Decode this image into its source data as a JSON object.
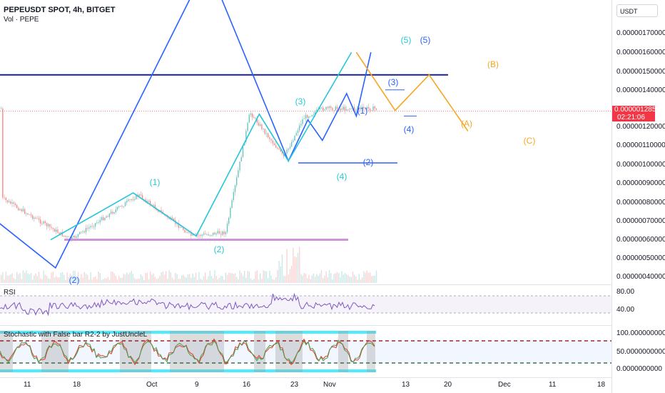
{
  "header": {
    "symbol_line": "PEPEUSDT SPOT, 4h, BITGET",
    "volume_label": "Vol · PEPE"
  },
  "currency_selector": "USDT",
  "price_axis": [
    {
      "label": "0.00000170000"
    },
    {
      "label": "0.00000160000"
    },
    {
      "label": "0.00000150000"
    },
    {
      "label": "0.00000140000"
    },
    {
      "label": "0.00000120000"
    },
    {
      "label": "0.00000110000"
    },
    {
      "label": "0.00000100000"
    },
    {
      "label": "0.00000090000"
    },
    {
      "label": "0.00000080000"
    },
    {
      "label": "0.00000070000"
    },
    {
      "label": "0.00000060000"
    },
    {
      "label": "0.00000050000"
    },
    {
      "label": "0.00000040000"
    }
  ],
  "current_price": {
    "value": "0.00000128579",
    "countdown": "02:21:06",
    "color": "#f23645"
  },
  "rsi_panel": {
    "label": "RSI",
    "levels": [
      "80.00",
      "40.00"
    ]
  },
  "stoch_panel": {
    "label": "Stochastic with False bar R2-2 by JustUncleL",
    "levels": [
      "100.0000000000",
      "50.0000000000",
      "0.0000000000"
    ]
  },
  "time_axis": [
    {
      "label": "11"
    },
    {
      "label": "18"
    },
    {
      "label": "Oct"
    },
    {
      "label": "9"
    },
    {
      "label": "16"
    },
    {
      "label": "23"
    },
    {
      "label": "Nov"
    },
    {
      "label": "13"
    },
    {
      "label": "20"
    },
    {
      "label": "Dec"
    },
    {
      "label": "11"
    },
    {
      "label": "18"
    }
  ],
  "chart_data": {
    "type": "line",
    "title": "PEPEUSDT SPOT, 4h, BITGET",
    "y_axis_range": [
      4e-07,
      1.7e-06
    ],
    "price_overlay": {
      "x": [
        "Sep 04",
        "Sep 18",
        "Oct 02",
        "Oct 13",
        "Oct 20",
        "Oct 25",
        "Nov 01",
        "Nov 05",
        "Nov 09"
      ],
      "y": [
        8.2e-07,
        6e-07,
        8.4e-07,
        6.2e-07,
        6.4e-07,
        1.28e-06,
        1.04e-06,
        1.25e-06,
        1.3e-06
      ]
    },
    "wave_labels_cyan": [
      "(1)",
      "(2)",
      "(3)",
      "(4)",
      "(5)"
    ],
    "wave_labels_blue": [
      "(2)",
      "(1)",
      "(2)",
      "(3)",
      "(4)",
      "(5)"
    ],
    "wave_labels_orange": [
      "(A)",
      "(B)",
      "(C)"
    ],
    "cyan_wave": {
      "x": [
        "Sep 14",
        "Oct 01",
        "Oct 14",
        "Oct 27",
        "Nov 02",
        "Nov 15"
      ],
      "y": [
        6e-07,
        8.5e-07,
        6.2e-07,
        1.27e-06,
        1.02e-06,
        1.6e-06
      ]
    },
    "blue_wave": {
      "x": [
        "Aug 27",
        "Sep 15",
        "Oct 13",
        "Oct 19",
        "Nov 02",
        "Nov 06",
        "Nov 09",
        "Nov 14",
        "Nov 16",
        "Nov 19"
      ],
      "y": [
        8.2e-07,
        4.5e-07,
        1.9e-06,
        1.9e-06,
        1.02e-06,
        1.24e-06,
        1.13e-06,
        1.38e-06,
        1.26e-06,
        1.6e-06
      ]
    },
    "orange_wave": {
      "x": [
        "Nov 16",
        "Nov 24",
        "Dec 01",
        "Dec 09"
      ],
      "y": [
        1.6e-06,
        1.29e-06,
        1.48e-06,
        1.18e-06
      ]
    },
    "resistance_level": 1.48e-06,
    "support_level_purple": 6e-07,
    "support_level_blue": 1.01e-06,
    "series_colors": {
      "cyan": "#26c6da",
      "blue": "#2962ff",
      "orange": "#f5a623",
      "navy": "#1a237e",
      "purple": "#ce93d8"
    }
  }
}
